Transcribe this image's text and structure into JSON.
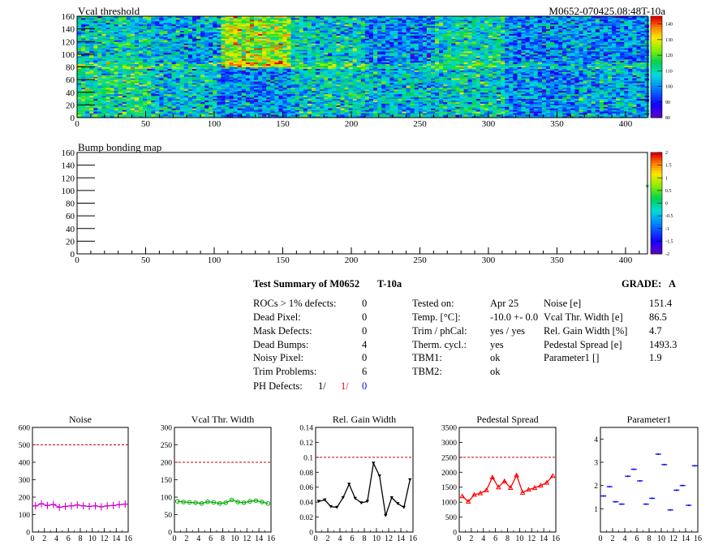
{
  "top_title": "Vcal threshold",
  "top_id": "M0652-070425.08:48T-10a",
  "bump_title": "Bump bonding map",
  "summary": {
    "heading": "Test Summary of M0652",
    "temp_tag": "T-10a",
    "grade_label": "GRADE:",
    "grade_value": "A",
    "defects": [
      {
        "label": "ROCs > 1% defects:",
        "value": "0"
      },
      {
        "label": "Dead Pixel:",
        "value": "0"
      },
      {
        "label": "Mask Defects:",
        "value": "0"
      },
      {
        "label": "Dead Bumps:",
        "value": "4"
      },
      {
        "label": "Noisy Pixel:",
        "value": "0"
      },
      {
        "label": "Trim Problems:",
        "value": "6"
      }
    ],
    "ph_label": "PH Defects:",
    "ph_values": [
      "1/",
      "1/",
      "0"
    ],
    "ph_colors": [
      "#000000",
      "#ff0000",
      "#0000ff"
    ],
    "conditions": [
      {
        "label": "Tested on:",
        "value": "Apr 25"
      },
      {
        "label": "Temp. [°C]:",
        "value": "-10.0 +- 0.0"
      },
      {
        "label": "Trim / phCal:",
        "value": "yes / yes"
      },
      {
        "label": "Therm. cycl.:",
        "value": "yes"
      },
      {
        "label": "TBM1:",
        "value": "ok"
      },
      {
        "label": "TBM2:",
        "value": "ok"
      }
    ],
    "results": [
      {
        "label": "Noise [e]",
        "value": "151.4"
      },
      {
        "label": "Vcal Thr. Width [e]",
        "value": "86.5"
      },
      {
        "label": "Rel. Gain Width [%]",
        "value": "4.7"
      },
      {
        "label": "Pedestal Spread [e]",
        "value": "1493.3"
      },
      {
        "label": "Parameter1 []",
        "value": "1.9"
      }
    ]
  },
  "chart_data": [
    {
      "type": "heatmap",
      "title": "Vcal threshold",
      "annotation": "M0652-070425.08:48T-10a",
      "xlim": [
        0,
        416
      ],
      "ylim": [
        0,
        160
      ],
      "xticks": [
        "0",
        "50",
        "100",
        "150",
        "200",
        "250",
        "300",
        "350",
        "400"
      ],
      "yticks": [
        "0",
        "20",
        "40",
        "60",
        "80",
        "100",
        "120",
        "140",
        "160"
      ],
      "colorbar": {
        "range": [
          80,
          145
        ],
        "ticks": [
          "80",
          "90",
          "100",
          "110",
          "120",
          "130",
          "140"
        ]
      },
      "roc_mean_top": [
        108,
        104,
        124,
        108,
        100,
        110,
        100,
        100
      ],
      "roc_mean_bottom": [
        112,
        106,
        100,
        108,
        106,
        108,
        100,
        104
      ]
    },
    {
      "type": "heatmap",
      "title": "Bump bonding map",
      "xlim": [
        0,
        416
      ],
      "ylim": [
        0,
        160
      ],
      "xticks": [
        "0",
        "50",
        "100",
        "150",
        "200",
        "250",
        "300",
        "350",
        "400"
      ],
      "yticks": [
        "0",
        "20",
        "40",
        "60",
        "80",
        "100",
        "120",
        "140",
        "160"
      ],
      "colorbar": {
        "range": [
          -2,
          2
        ],
        "ticks": [
          "-2",
          "-1.5",
          "-1",
          "-0.5",
          "0",
          "0.5",
          "1",
          "1.5",
          "2"
        ]
      },
      "entries": [
        {
          "x": 415,
          "y": 107,
          "z": 0.2
        }
      ]
    },
    {
      "type": "scatter",
      "title": "Noise",
      "xlim": [
        0,
        16
      ],
      "ylim": [
        0,
        600
      ],
      "xticks": [
        "0",
        "2",
        "4",
        "6",
        "8",
        "10",
        "12",
        "14",
        "16"
      ],
      "yticks": [
        "0",
        "100",
        "200",
        "300",
        "400",
        "500",
        "600"
      ],
      "cut": 500,
      "color": "#cc00cc",
      "marker": "cross",
      "x": [
        0,
        1,
        2,
        3,
        4,
        5,
        6,
        7,
        8,
        9,
        10,
        11,
        12,
        13,
        14,
        15
      ],
      "y": [
        150,
        162,
        152,
        158,
        142,
        147,
        150,
        155,
        150,
        147,
        150,
        145,
        150,
        152,
        157,
        160
      ]
    },
    {
      "type": "line",
      "title": "Vcal Thr. Width",
      "xlim": [
        0,
        16
      ],
      "ylim": [
        0,
        300
      ],
      "xticks": [
        "0",
        "2",
        "4",
        "6",
        "8",
        "10",
        "12",
        "14",
        "16"
      ],
      "yticks": [
        "0",
        "50",
        "100",
        "150",
        "200",
        "250",
        "300"
      ],
      "cut": 200,
      "color": "#00aa00",
      "marker": "circle",
      "x": [
        0,
        1,
        2,
        3,
        4,
        5,
        6,
        7,
        8,
        9,
        10,
        11,
        12,
        13,
        14,
        15
      ],
      "y": [
        88,
        86,
        85,
        84,
        82,
        87,
        85,
        82,
        84,
        92,
        86,
        84,
        88,
        90,
        86,
        82
      ]
    },
    {
      "type": "line",
      "title": "Rel. Gain Width",
      "xlim": [
        0,
        16
      ],
      "ylim": [
        0,
        0.14
      ],
      "xticks": [
        "0",
        "2",
        "4",
        "6",
        "8",
        "10",
        "12",
        "14",
        "16"
      ],
      "yticks": [
        "0",
        "0.02",
        "0.04",
        "0.06",
        "0.08",
        "0.1",
        "0.12",
        "0.14"
      ],
      "cut": 0.1,
      "color": "#000000",
      "marker": "triangle-down",
      "x": [
        0,
        1,
        2,
        3,
        4,
        5,
        6,
        7,
        8,
        9,
        10,
        11,
        12,
        13,
        14,
        15
      ],
      "y": [
        0.041,
        0.043,
        0.034,
        0.033,
        0.046,
        0.064,
        0.045,
        0.039,
        0.041,
        0.092,
        0.075,
        0.022,
        0.046,
        0.038,
        0.033,
        0.07
      ]
    },
    {
      "type": "line",
      "title": "Pedestal Spread",
      "xlim": [
        0,
        16
      ],
      "ylim": [
        0,
        3500
      ],
      "xticks": [
        "0",
        "2",
        "4",
        "6",
        "8",
        "10",
        "12",
        "14",
        "16"
      ],
      "yticks": [
        "0",
        "500",
        "1000",
        "1500",
        "2000",
        "2500",
        "3000",
        "3500"
      ],
      "cut": 2500,
      "color": "#ff0000",
      "marker": "triangle-up",
      "x": [
        0,
        1,
        2,
        3,
        4,
        5,
        6,
        7,
        8,
        9,
        10,
        11,
        12,
        13,
        14,
        15
      ],
      "y": [
        1200,
        1020,
        1250,
        1300,
        1400,
        1830,
        1500,
        1700,
        1480,
        1900,
        1320,
        1420,
        1480,
        1560,
        1650,
        1880
      ]
    },
    {
      "type": "scatter",
      "title": "Parameter1",
      "xlim": [
        0,
        16
      ],
      "ylim": [
        0,
        4.5
      ],
      "xticks": [
        "0",
        "2",
        "4",
        "6",
        "8",
        "10",
        "12",
        "14",
        "16"
      ],
      "yticks": [
        "1",
        "2",
        "3",
        "4"
      ],
      "color": "#0000ff",
      "marker": "cross",
      "x": [
        0,
        1,
        2,
        3,
        4,
        5,
        6,
        7,
        8,
        9,
        10,
        11,
        12,
        13,
        14,
        15
      ],
      "y": [
        1.55,
        1.95,
        1.3,
        1.2,
        2.4,
        2.7,
        2.2,
        1.2,
        1.45,
        3.35,
        2.9,
        0.95,
        1.8,
        2.0,
        1.15,
        2.85
      ]
    }
  ]
}
